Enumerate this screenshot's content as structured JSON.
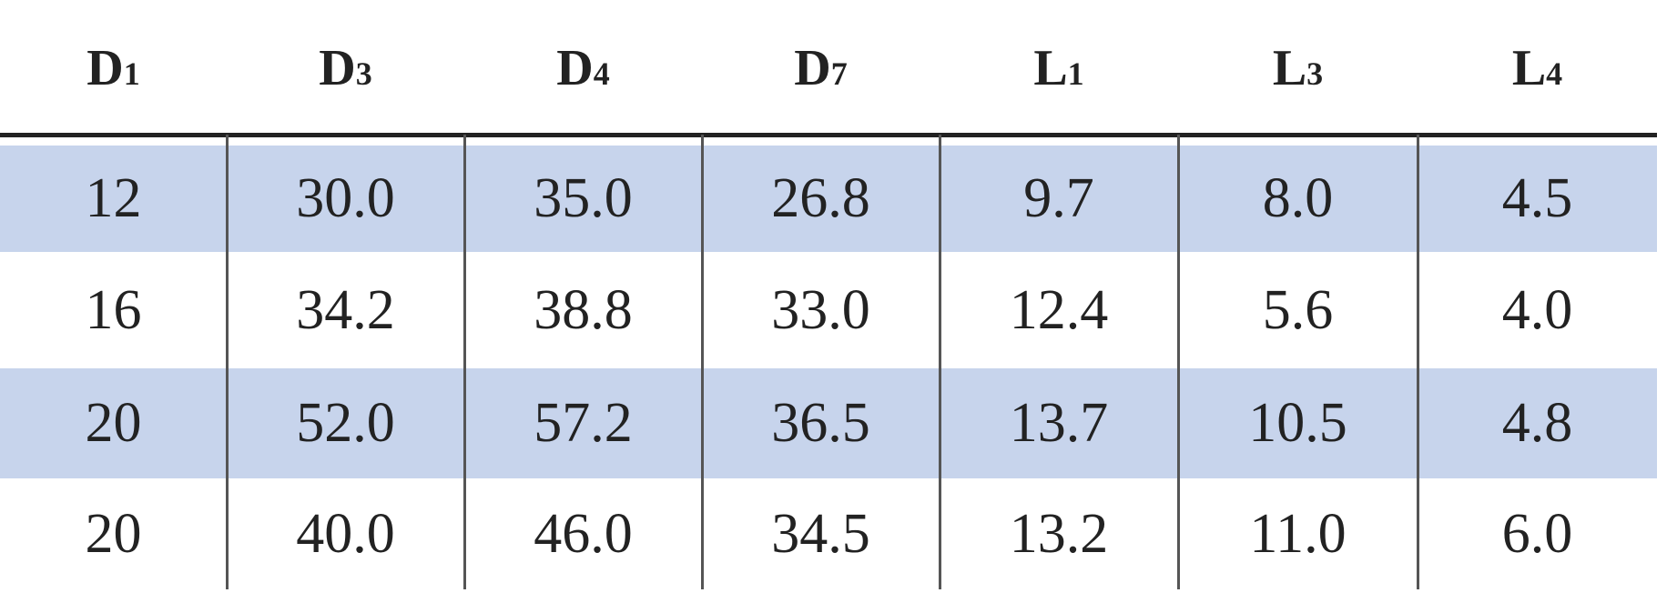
{
  "table": {
    "headers": [
      {
        "symbol": "D",
        "sub": "1"
      },
      {
        "symbol": "D",
        "sub": "3"
      },
      {
        "symbol": "D",
        "sub": "4"
      },
      {
        "symbol": "D",
        "sub": "7"
      },
      {
        "symbol": "L",
        "sub": "1"
      },
      {
        "symbol": "L",
        "sub": "3"
      },
      {
        "symbol": "L",
        "sub": "4"
      }
    ],
    "rows": [
      [
        "12",
        "30.0",
        "35.0",
        "26.8",
        "9.7",
        "8.0",
        "4.5"
      ],
      [
        "16",
        "34.2",
        "38.8",
        "33.0",
        "12.4",
        "5.6",
        "4.0"
      ],
      [
        "20",
        "52.0",
        "57.2",
        "36.5",
        "13.7",
        "10.5",
        "4.8"
      ],
      [
        "20",
        "40.0",
        "46.0",
        "34.5",
        "13.2",
        "11.0",
        "6.0"
      ]
    ]
  }
}
